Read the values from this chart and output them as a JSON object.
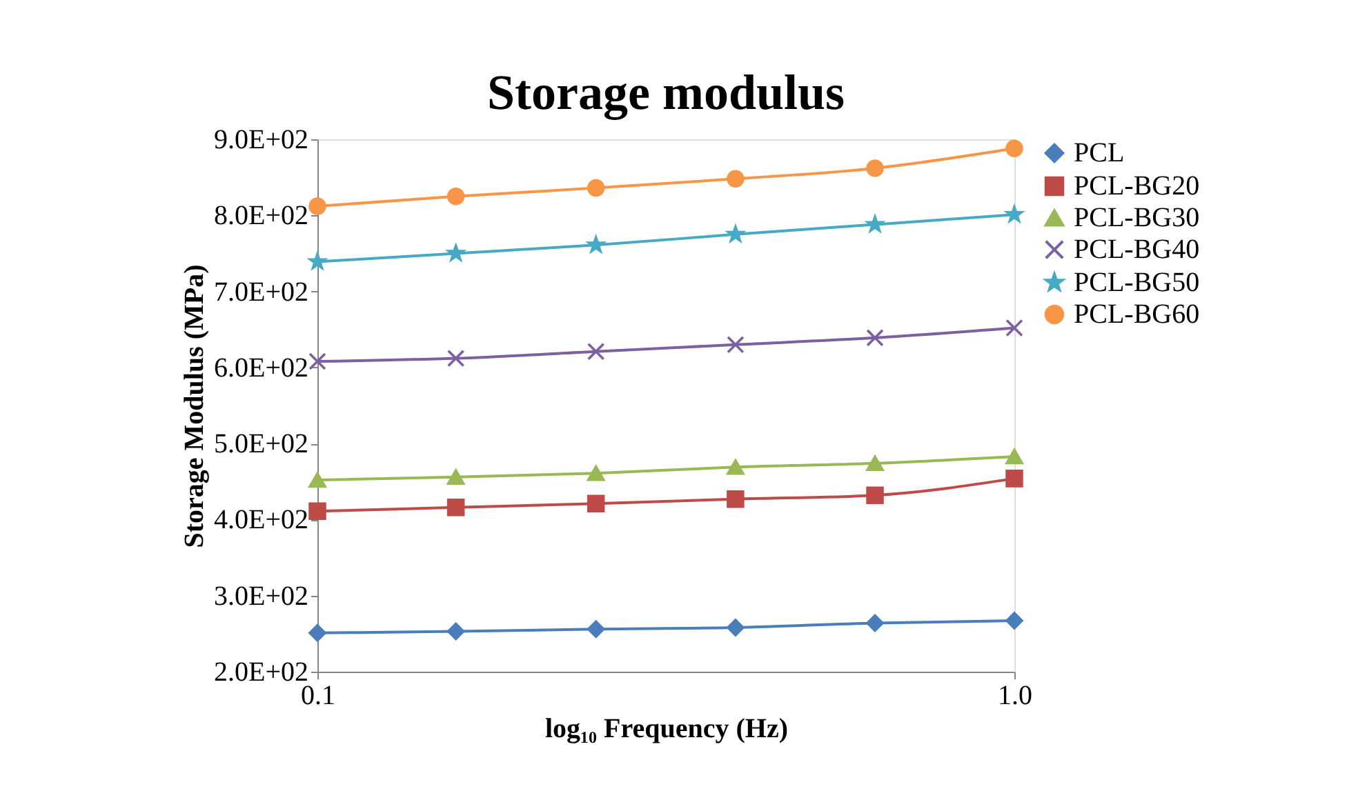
{
  "chart_data": {
    "type": "line",
    "title": "Storage modulus",
    "xlabel": "log₁₀ Frequency (Hz)",
    "ylabel": "Storage Modulus (MPa)",
    "log": "x",
    "xlim": [
      0.1,
      1
    ],
    "xticks": [
      0.1,
      {
        "value": 1,
        "label": "1.0"
      }
    ],
    "ylim": [
      200,
      900
    ],
    "yticks": [
      {
        "value": 200,
        "label": "2.0E+02"
      },
      {
        "value": 300,
        "label": "3.0E+02"
      },
      {
        "value": 400,
        "label": "4.0E+02"
      },
      {
        "value": 500,
        "label": "5.0E+02"
      },
      {
        "value": 600,
        "label": "6.0E+02"
      },
      {
        "value": 700,
        "label": "7.0E+02"
      },
      {
        "value": 800,
        "label": "8.0E+02"
      },
      {
        "value": 900,
        "label": "9.0E+02"
      }
    ],
    "x": [
      0.1,
      0.158,
      0.251,
      0.398,
      0.631,
      1.0
    ],
    "grid": false,
    "legend": "right",
    "line_style": "solid",
    "series": [
      {
        "name": "PCL",
        "color": "#4a7ebb",
        "marker": "diamond",
        "values": [
          251,
          253,
          256,
          258,
          264,
          267
        ]
      },
      {
        "name": "PCL-BG20",
        "color": "#be4b48",
        "marker": "square",
        "values": [
          411,
          416,
          421,
          427,
          432,
          454
        ]
      },
      {
        "name": "PCL-BG30",
        "color": "#98b954",
        "marker": "triangle",
        "values": [
          452,
          456,
          461,
          469,
          474,
          483
        ]
      },
      {
        "name": "PCL-BG40",
        "color": "#7d60a0",
        "marker": "cross",
        "values": [
          608,
          612,
          621,
          630,
          639,
          652
        ]
      },
      {
        "name": "PCL-BG50",
        "color": "#46aac5",
        "marker": "star",
        "values": [
          739,
          750,
          761,
          775,
          788,
          801
        ]
      },
      {
        "name": "PCL-BG60",
        "color": "#f79646",
        "marker": "circle",
        "values": [
          812,
          825,
          836,
          848,
          862,
          888
        ]
      }
    ]
  }
}
